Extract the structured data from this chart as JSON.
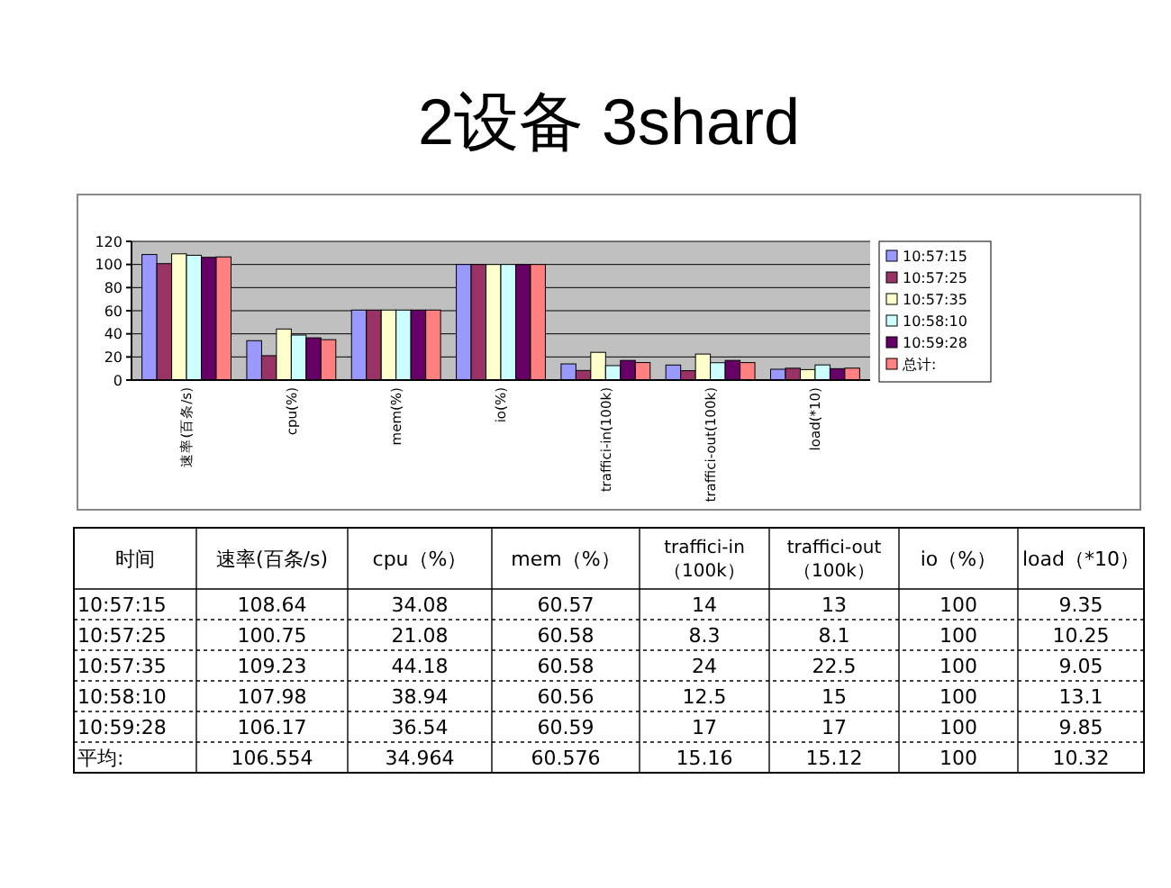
{
  "chart_data": [
    {
      "type": "bar",
      "title": "2设备 3shard",
      "categories": [
        "速率(百条/s)",
        "cpu(%)",
        "mem(%)",
        "io(%)",
        "traffici-in(100k)",
        "traffici-out(100k)",
        "load(*10)"
      ],
      "series": [
        {
          "name": "10:57:15",
          "color": "#9999ff",
          "values": [
            108.64,
            34.08,
            60.57,
            100,
            14,
            13,
            9.35
          ]
        },
        {
          "name": "10:57:25",
          "color": "#993366",
          "values": [
            100.75,
            21.08,
            60.58,
            100,
            8.3,
            8.1,
            10.25
          ]
        },
        {
          "name": "10:57:35",
          "color": "#ffffcc",
          "values": [
            109.23,
            44.18,
            60.58,
            100,
            24,
            22.5,
            9.05
          ]
        },
        {
          "name": "10:58:10",
          "color": "#ccffff",
          "values": [
            107.98,
            38.94,
            60.56,
            100,
            12.5,
            15,
            13.1
          ]
        },
        {
          "name": "10:59:28",
          "color": "#660066",
          "values": [
            106.17,
            36.54,
            60.59,
            100,
            17,
            17,
            9.85
          ]
        },
        {
          "name": "总计:",
          "color": "#ff8080",
          "values": [
            106.554,
            34.964,
            60.576,
            100,
            15.16,
            15.12,
            10.32
          ]
        }
      ],
      "ylim": [
        0,
        120
      ],
      "yticks": [
        0,
        20,
        40,
        60,
        80,
        100,
        120
      ],
      "grid": "y",
      "legend": "right"
    },
    {
      "type": "heatmap",
      "ylabel": "时间",
      "data_labels": true,
      "categories": [
        "速率(百条/s)",
        "cpu（%）",
        "mem（%）",
        "traffici-in（100k）",
        "traffici-out（100k）",
        "io（%）",
        "load（*10）"
      ],
      "y_categories": [
        "10:57:15",
        "10:57:25",
        "10:57:35",
        "10:58:10",
        "10:59:28",
        "平均:"
      ],
      "cells": [
        [
          108.64,
          34.08,
          60.57,
          14,
          13,
          100,
          9.35
        ],
        [
          100.75,
          21.08,
          60.58,
          8.3,
          8.1,
          100,
          10.25
        ],
        [
          109.23,
          44.18,
          60.58,
          24,
          22.5,
          100,
          9.05
        ],
        [
          107.98,
          38.94,
          60.56,
          12.5,
          15,
          100,
          13.1
        ],
        [
          106.17,
          36.54,
          60.59,
          17,
          17,
          100,
          9.85
        ],
        [
          106.554,
          34.964,
          60.576,
          15.16,
          15.12,
          100,
          10.32
        ]
      ]
    }
  ]
}
